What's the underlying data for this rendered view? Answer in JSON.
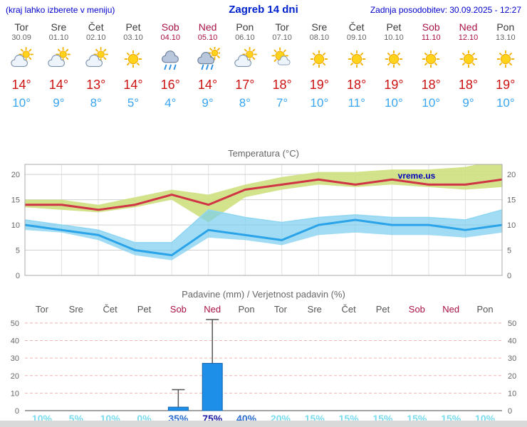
{
  "header": {
    "hint": "(kraj lahko izberete v meniju)",
    "title": "Zagreb 14 dni",
    "updated": "Zadnja posodobitev: 30.09.2025 - 12:27"
  },
  "colors": {
    "header_blue": "#0022cc",
    "weekend_red": "#a81243",
    "tmax_red": "#cc1111",
    "tmin_blue": "#3aa5f0",
    "bar_blue": "#1e8fe8",
    "prob_low_cyan": "#7bdced",
    "prob_mid_blue": "#2f6fd0",
    "prob_high_navy": "#1a1aa6"
  },
  "forecast": {
    "days": [
      {
        "name": "Tor",
        "date": "30.09",
        "icon": "cloud-sun",
        "tmax": "14°",
        "tmin": "10°",
        "weekend": false
      },
      {
        "name": "Sre",
        "date": "01.10",
        "icon": "cloud-sun",
        "tmax": "14°",
        "tmin": "9°",
        "weekend": false
      },
      {
        "name": "Čet",
        "date": "02.10",
        "icon": "cloud-sun",
        "tmax": "13°",
        "tmin": "8°",
        "weekend": false
      },
      {
        "name": "Pet",
        "date": "03.10",
        "icon": "sun",
        "tmax": "14°",
        "tmin": "5°",
        "weekend": false
      },
      {
        "name": "Sob",
        "date": "04.10",
        "icon": "rain",
        "tmax": "16°",
        "tmin": "4°",
        "weekend": true
      },
      {
        "name": "Ned",
        "date": "05.10",
        "icon": "rain-sun",
        "tmax": "14°",
        "tmin": "9°",
        "weekend": true
      },
      {
        "name": "Pon",
        "date": "06.10",
        "icon": "cloud-sun",
        "tmax": "17°",
        "tmin": "8°",
        "weekend": false
      },
      {
        "name": "Tor",
        "date": "07.10",
        "icon": "sun-cloud",
        "tmax": "18°",
        "tmin": "7°",
        "weekend": false
      },
      {
        "name": "Sre",
        "date": "08.10",
        "icon": "sun",
        "tmax": "19°",
        "tmin": "10°",
        "weekend": false
      },
      {
        "name": "Čet",
        "date": "09.10",
        "icon": "sun",
        "tmax": "18°",
        "tmin": "11°",
        "weekend": false
      },
      {
        "name": "Pet",
        "date": "10.10",
        "icon": "sun",
        "tmax": "19°",
        "tmin": "10°",
        "weekend": false
      },
      {
        "name": "Sob",
        "date": "11.10",
        "icon": "sun",
        "tmax": "18°",
        "tmin": "10°",
        "weekend": true
      },
      {
        "name": "Ned",
        "date": "12.10",
        "icon": "sun",
        "tmax": "18°",
        "tmin": "9°",
        "weekend": true
      },
      {
        "name": "Pon",
        "date": "13.10",
        "icon": "sun",
        "tmax": "19°",
        "tmin": "10°",
        "weekend": false
      }
    ]
  },
  "chart_data": [
    {
      "type": "line",
      "title": "Temperatura (°C)",
      "watermark": "vreme.us",
      "x_days": [
        "Tor",
        "Sre",
        "Čet",
        "Pet",
        "Sob",
        "Ned",
        "Pon",
        "Tor",
        "Sre",
        "Čet",
        "Pet",
        "Sob",
        "Ned",
        "Pon"
      ],
      "ylim": [
        0,
        22
      ],
      "yticks": [
        0,
        5,
        10,
        15,
        20
      ],
      "grid": true,
      "series": [
        {
          "name": "max temperature",
          "color": "#d03545",
          "values": [
            14,
            14,
            13,
            14,
            16,
            14,
            17,
            18,
            19,
            18,
            19,
            18,
            18,
            19
          ]
        },
        {
          "name": "max band upper",
          "color": "#cde07e",
          "values": [
            15,
            15,
            14,
            15.5,
            17,
            16,
            18,
            19.5,
            20.5,
            20.5,
            21,
            21,
            21.5,
            23
          ]
        },
        {
          "name": "max band lower",
          "color": "#cde07e",
          "values": [
            13.5,
            13,
            12.5,
            13.5,
            15,
            10.5,
            15.5,
            17,
            18,
            17.5,
            18,
            17.5,
            17,
            17.5
          ]
        },
        {
          "name": "min temperature",
          "color": "#2aa3e8",
          "values": [
            10,
            9,
            8,
            5,
            4,
            9,
            8,
            7,
            10,
            11,
            10,
            10,
            9,
            10
          ]
        },
        {
          "name": "min band upper",
          "color": "#79cdf0",
          "values": [
            11,
            10,
            9,
            6.5,
            6.5,
            13,
            11.5,
            10.5,
            11.5,
            12,
            11.5,
            11.5,
            11,
            13
          ]
        },
        {
          "name": "min band lower",
          "color": "#79cdf0",
          "values": [
            9,
            8.5,
            7,
            4,
            3,
            7.5,
            7,
            6,
            8,
            8.5,
            8,
            8,
            7.5,
            8.5
          ]
        }
      ]
    },
    {
      "type": "bar",
      "title": "Padavine (mm) / Verjetnost padavin (%)",
      "categories": [
        "Tor",
        "Sre",
        "Čet",
        "Pet",
        "Sob",
        "Ned",
        "Pon",
        "Tor",
        "Sre",
        "Čet",
        "Pet",
        "Sob",
        "Ned",
        "Pon"
      ],
      "weekend": [
        false,
        false,
        false,
        false,
        true,
        true,
        false,
        false,
        false,
        false,
        false,
        true,
        true,
        false
      ],
      "ylim": [
        0,
        52
      ],
      "yticks": [
        0,
        10,
        20,
        30,
        40,
        50
      ],
      "precip_mm": [
        0,
        0,
        0,
        0,
        2,
        27,
        0,
        0,
        0,
        0,
        0,
        0,
        0,
        0
      ],
      "precip_max_mm": [
        0,
        0,
        0,
        0,
        12,
        52,
        0,
        0,
        0,
        0,
        0,
        0,
        0,
        0
      ],
      "probabilities": [
        "10%",
        "5%",
        "10%",
        "0%",
        "35%",
        "75%",
        "40%",
        "20%",
        "15%",
        "15%",
        "15%",
        "15%",
        "15%",
        "10%"
      ]
    }
  ]
}
